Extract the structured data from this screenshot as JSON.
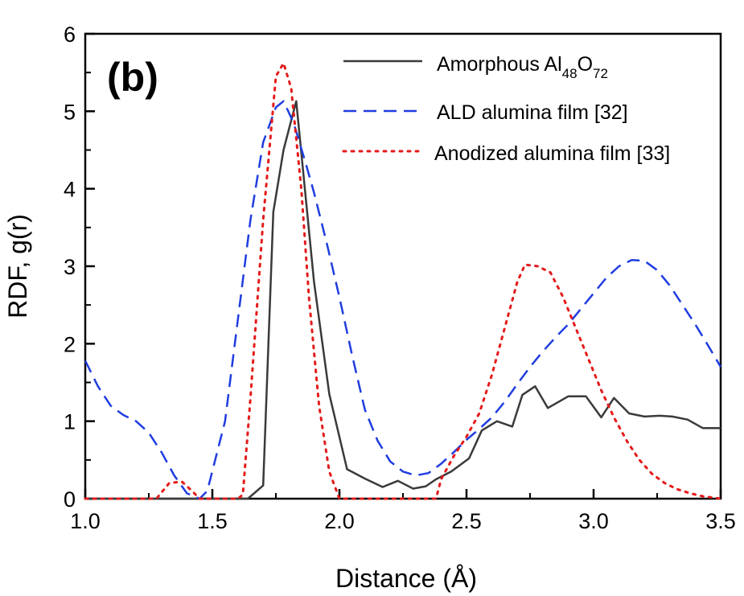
{
  "chart_data": {
    "type": "line",
    "panel_label": "(b)",
    "xlabel": "Distance (Å)",
    "ylabel": "RDF, g(r)",
    "xlim": [
      1.0,
      3.5
    ],
    "ylim": [
      0,
      6
    ],
    "xticks": [
      "1.0",
      "1.5",
      "2.0",
      "2.5",
      "3.0",
      "3.5"
    ],
    "yticks": [
      "0",
      "1",
      "2",
      "3",
      "4",
      "5",
      "6"
    ],
    "legend_position": "top-right",
    "series": [
      {
        "name": "Amorphous Al48O72",
        "legend": {
          "base": "Amorphous Al",
          "sub1": "48",
          "mid": "O",
          "sub2": "72"
        },
        "color": "#3a3a3a",
        "style": "solid",
        "x": [
          1.0,
          1.62,
          1.64,
          1.7,
          1.74,
          1.78,
          1.83,
          1.9,
          1.96,
          2.03,
          2.1,
          2.17,
          2.23,
          2.29,
          2.34,
          2.38,
          2.44,
          2.51,
          2.56,
          2.62,
          2.68,
          2.72,
          2.77,
          2.82,
          2.9,
          2.97,
          3.03,
          3.08,
          3.14,
          3.2,
          3.26,
          3.31,
          3.37,
          3.43,
          3.5
        ],
        "y": [
          0.0,
          0.0,
          0.0,
          0.17,
          3.7,
          4.5,
          5.13,
          2.8,
          1.35,
          0.38,
          0.26,
          0.15,
          0.23,
          0.13,
          0.16,
          0.25,
          0.35,
          0.52,
          0.88,
          1.0,
          0.93,
          1.34,
          1.45,
          1.17,
          1.32,
          1.32,
          1.05,
          1.3,
          1.1,
          1.06,
          1.07,
          1.06,
          1.02,
          0.91,
          0.91
        ]
      },
      {
        "name": "ALD alumina film [32]",
        "color": "#1f3de0",
        "style": "dashed",
        "x": [
          1.0,
          1.05,
          1.1,
          1.15,
          1.2,
          1.25,
          1.3,
          1.35,
          1.4,
          1.45,
          1.48,
          1.55,
          1.6,
          1.65,
          1.7,
          1.75,
          1.78,
          1.82,
          1.87,
          1.9,
          1.95,
          2.0,
          2.05,
          2.1,
          2.15,
          2.2,
          2.25,
          2.3,
          2.35,
          2.4,
          2.45,
          2.5,
          2.55,
          2.6,
          2.65,
          2.7,
          2.75,
          2.8,
          2.85,
          2.9,
          2.95,
          3.0,
          3.05,
          3.1,
          3.15,
          3.2,
          3.25,
          3.3,
          3.35,
          3.4,
          3.45,
          3.5
        ],
        "y": [
          1.78,
          1.45,
          1.2,
          1.08,
          1.0,
          0.85,
          0.6,
          0.3,
          0.07,
          0.0,
          0.1,
          1.0,
          2.3,
          3.6,
          4.6,
          5.05,
          5.13,
          4.85,
          4.3,
          3.95,
          3.3,
          2.6,
          1.85,
          1.15,
          0.75,
          0.48,
          0.35,
          0.3,
          0.33,
          0.45,
          0.6,
          0.76,
          0.9,
          1.05,
          1.25,
          1.48,
          1.7,
          1.9,
          2.08,
          2.25,
          2.45,
          2.65,
          2.85,
          3.0,
          3.08,
          3.07,
          2.95,
          2.75,
          2.5,
          2.25,
          1.98,
          1.7
        ]
      },
      {
        "name": "Anodized alumina film [33]",
        "color": "#e41a1a",
        "style": "dotted",
        "x": [
          1.0,
          1.28,
          1.33,
          1.38,
          1.42,
          1.45,
          1.6,
          1.62,
          1.65,
          1.7,
          1.75,
          1.78,
          1.81,
          1.85,
          1.88,
          1.92,
          1.96,
          2.0,
          2.38,
          2.4,
          2.45,
          2.5,
          2.55,
          2.6,
          2.65,
          2.7,
          2.73,
          2.78,
          2.83,
          2.88,
          2.93,
          2.98,
          3.03,
          3.08,
          3.13,
          3.18,
          3.23,
          3.28,
          3.33,
          3.38,
          3.43,
          3.48,
          3.5
        ],
        "y": [
          0.0,
          0.0,
          0.2,
          0.22,
          0.1,
          0.0,
          0.0,
          0.05,
          1.3,
          3.6,
          5.45,
          5.62,
          5.3,
          4.0,
          2.6,
          1.2,
          0.35,
          0.0,
          0.0,
          0.25,
          0.55,
          0.8,
          1.1,
          1.6,
          2.2,
          2.8,
          3.02,
          3.0,
          2.92,
          2.6,
          2.2,
          1.8,
          1.4,
          1.05,
          0.75,
          0.5,
          0.32,
          0.2,
          0.12,
          0.07,
          0.03,
          0.01,
          0.0
        ]
      }
    ]
  }
}
